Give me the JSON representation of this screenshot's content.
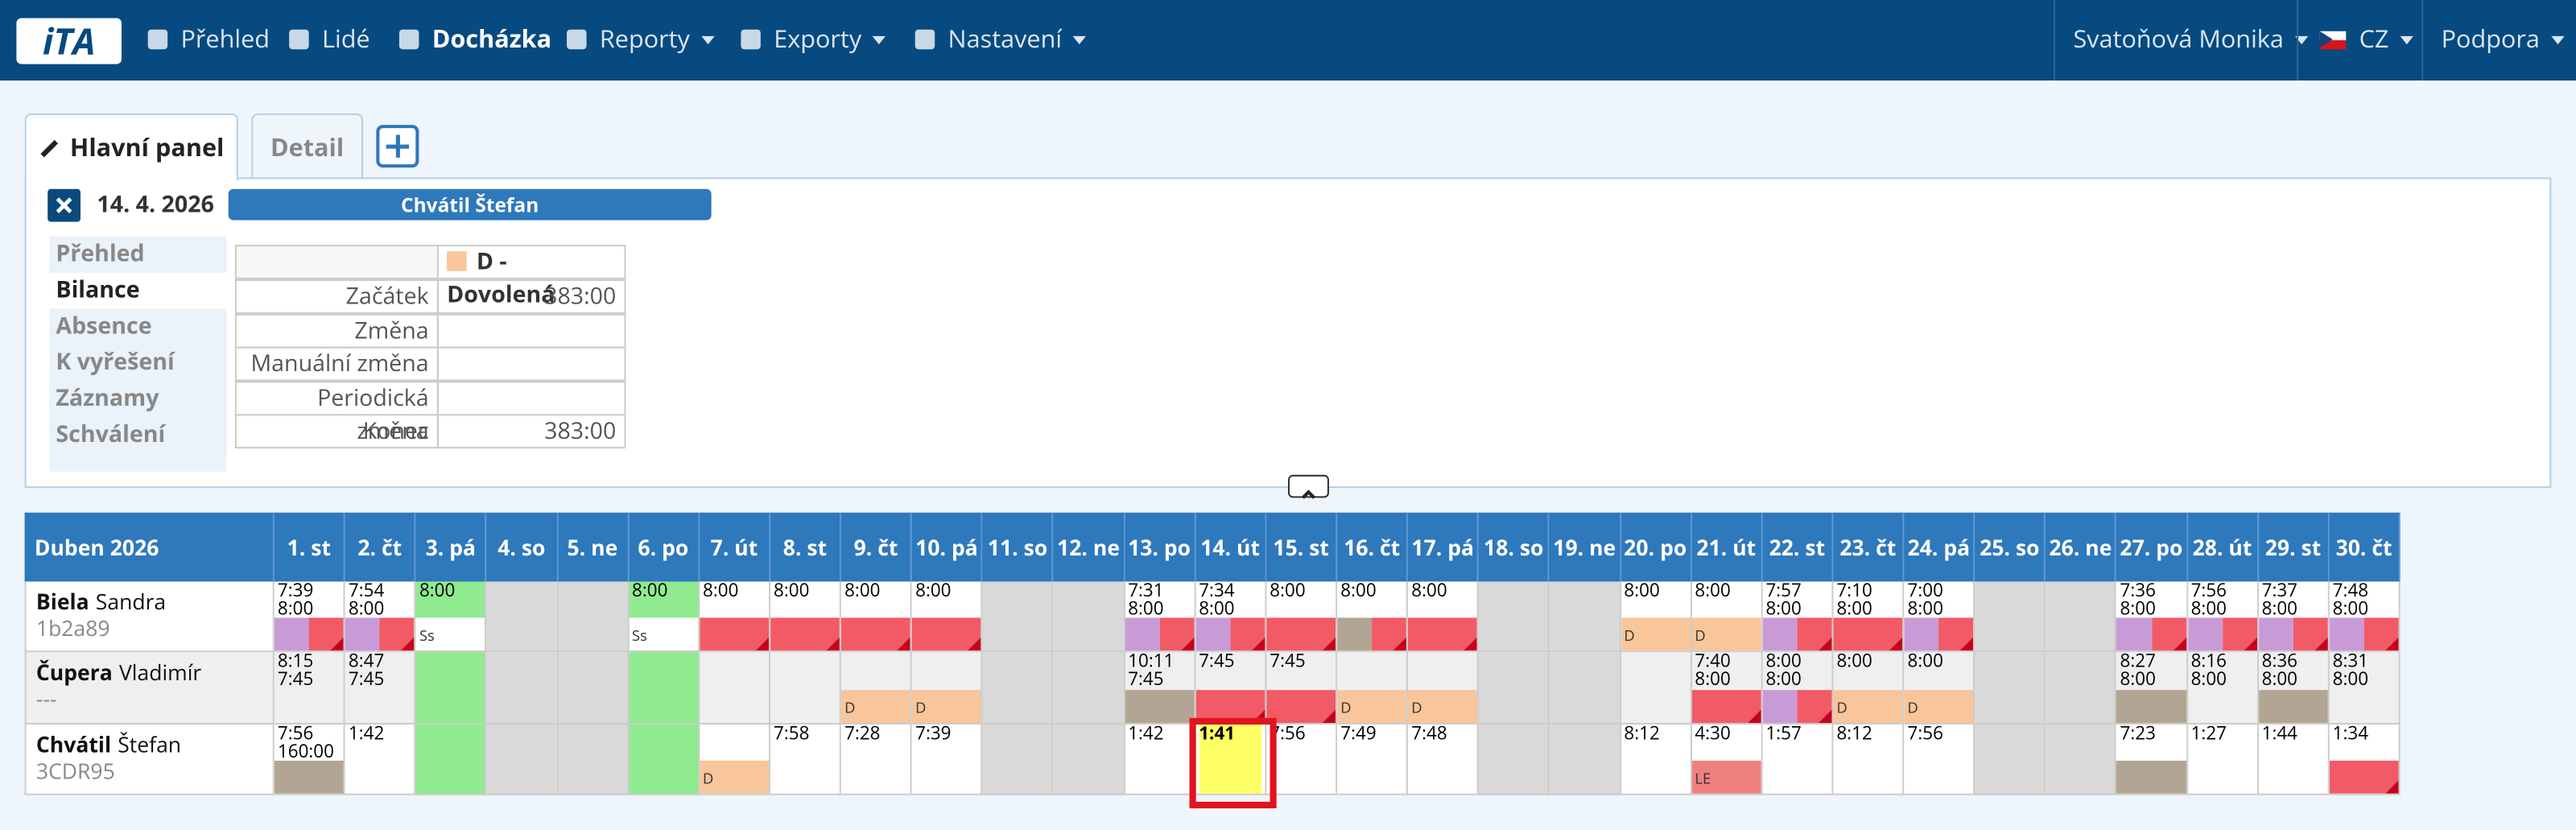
{
  "nav": {
    "logo": "iTA",
    "items": [
      "Přehled",
      "Lidé",
      "Docházka",
      "Reporty",
      "Exporty",
      "Nastavení"
    ],
    "active": 2,
    "dropdowns": [
      3,
      4,
      5
    ],
    "user": "Svatoňová Monika",
    "lang": "CZ",
    "support": "Podpora"
  },
  "tabs": [
    "Hlavní panel",
    "Detail"
  ],
  "panel": {
    "date": "14. 4. 2026",
    "employee": "Chvátil Štefan",
    "menu": [
      "Přehled",
      "Bilance",
      "Absence",
      "K vyřešení",
      "Záznamy",
      "Schválení"
    ],
    "menu_active": 1,
    "balance": {
      "header": "D - Dovolená",
      "rows": [
        {
          "label": "Začátek",
          "value": "383:00"
        },
        {
          "label": "Změna"
        },
        {
          "label": "Manuální změna"
        },
        {
          "label": "Periodická změna"
        },
        {
          "label": "Konec",
          "value": "383:00"
        }
      ]
    }
  },
  "calendar": {
    "month": "Duben 2026",
    "colors": {
      "purple": "#c99bd6",
      "red": "#f25a66",
      "brown": "#b3a593",
      "orange": "#f9c59a",
      "salmon": "#f08080",
      "white": "#ffffff"
    },
    "days": [
      "1. st",
      "2. čt",
      "3. pá",
      "4. so",
      "5. ne",
      "6. po",
      "7. út",
      "8. st",
      "9. čt",
      "10. pá",
      "11. so",
      "12. ne",
      "13. po",
      "14. út",
      "15. st",
      "16. čt",
      "17. pá",
      "18. so",
      "19. ne",
      "20. po",
      "21. út",
      "22. st",
      "23. čt",
      "24. pá",
      "25. so",
      "26. ne",
      "27. po",
      "28. út",
      "29. st",
      "30. čt"
    ],
    "rows": [
      {
        "surname": "Biela",
        "firstname": "Sandra",
        "code": "1b2a89",
        "cells": [
          {
            "lines": [
              "7:39",
              "8:00"
            ],
            "bar": [
              "purple",
              "red"
            ]
          },
          {
            "lines": [
              "7:54",
              "8:00"
            ],
            "bar": [
              "purple",
              "red"
            ]
          },
          {
            "kind": "holiday",
            "lines": [
              "8:00"
            ],
            "bar": [
              "white"
            ],
            "tag": "Ss"
          },
          {
            "kind": "weekend"
          },
          {
            "kind": "weekend"
          },
          {
            "kind": "holiday",
            "lines": [
              "8:00"
            ],
            "bar": [
              "white"
            ],
            "tag": "Ss"
          },
          {
            "lines": [
              "8:00"
            ],
            "bar": [
              "red"
            ]
          },
          {
            "lines": [
              "8:00"
            ],
            "bar": [
              "red"
            ]
          },
          {
            "lines": [
              "8:00"
            ],
            "bar": [
              "red"
            ]
          },
          {
            "lines": [
              "8:00"
            ],
            "bar": [
              "red"
            ]
          },
          {
            "kind": "weekend"
          },
          {
            "kind": "weekend"
          },
          {
            "lines": [
              "7:31",
              "8:00"
            ],
            "bar": [
              "purple",
              "red"
            ]
          },
          {
            "lines": [
              "7:34",
              "8:00"
            ],
            "bar": [
              "purple",
              "red"
            ]
          },
          {
            "lines": [
              "8:00"
            ],
            "bar": [
              "red"
            ]
          },
          {
            "lines": [
              "8:00"
            ],
            "bar": [
              "brown",
              "red"
            ]
          },
          {
            "lines": [
              "8:00"
            ],
            "bar": [
              "red"
            ]
          },
          {
            "kind": "weekend"
          },
          {
            "kind": "weekend"
          },
          {
            "lines": [
              "8:00"
            ],
            "bar": [
              "orange"
            ],
            "tag": "D"
          },
          {
            "lines": [
              "8:00"
            ],
            "bar": [
              "orange"
            ],
            "tag": "D"
          },
          {
            "lines": [
              "7:57",
              "8:00"
            ],
            "bar": [
              "purple",
              "red"
            ]
          },
          {
            "lines": [
              "7:10",
              "8:00"
            ],
            "bar": [
              "red"
            ]
          },
          {
            "lines": [
              "7:00",
              "8:00"
            ],
            "bar": [
              "purple",
              "red"
            ]
          },
          {
            "kind": "weekend"
          },
          {
            "kind": "weekend"
          },
          {
            "lines": [
              "7:36",
              "8:00"
            ],
            "bar": [
              "purple",
              "red"
            ]
          },
          {
            "lines": [
              "7:56",
              "8:00"
            ],
            "bar": [
              "purple",
              "red"
            ]
          },
          {
            "lines": [
              "7:37",
              "8:00"
            ],
            "bar": [
              "purple",
              "red"
            ]
          },
          {
            "lines": [
              "7:48",
              "8:00"
            ],
            "bar": [
              "purple",
              "red"
            ]
          }
        ]
      },
      {
        "surname": "Čupera",
        "firstname": "Vladimír",
        "code": "---",
        "shade": true,
        "cells": [
          {
            "lines": [
              "8:15",
              "7:45"
            ]
          },
          {
            "lines": [
              "8:47",
              "7:45"
            ]
          },
          {
            "kind": "holiday"
          },
          {
            "kind": "weekend"
          },
          {
            "kind": "weekend"
          },
          {
            "kind": "holiday"
          },
          {},
          {},
          {
            "bar": [
              "orange"
            ],
            "tag": "D"
          },
          {
            "bar": [
              "orange"
            ],
            "tag": "D"
          },
          {
            "kind": "weekend"
          },
          {
            "kind": "weekend"
          },
          {
            "lines": [
              "10:11",
              "7:45"
            ],
            "bar": [
              "brown"
            ]
          },
          {
            "lines": [
              "7:45"
            ],
            "bar": [
              "red"
            ]
          },
          {
            "lines": [
              "7:45"
            ],
            "bar": [
              "red"
            ]
          },
          {
            "bar": [
              "orange"
            ],
            "tag": "D"
          },
          {
            "bar": [
              "orange"
            ],
            "tag": "D"
          },
          {
            "kind": "weekend"
          },
          {
            "kind": "weekend"
          },
          {},
          {
            "lines": [
              "7:40",
              "8:00"
            ],
            "bar": [
              "red"
            ]
          },
          {
            "lines": [
              "8:00",
              "8:00"
            ],
            "bar": [
              "purple",
              "red"
            ]
          },
          {
            "lines": [
              "8:00"
            ],
            "bar": [
              "orange"
            ],
            "tag": "D"
          },
          {
            "lines": [
              "8:00"
            ],
            "bar": [
              "orange"
            ],
            "tag": "D"
          },
          {
            "kind": "weekend"
          },
          {
            "kind": "weekend"
          },
          {
            "lines": [
              "8:27",
              "8:00"
            ],
            "bar": [
              "brown"
            ]
          },
          {
            "lines": [
              "8:16",
              "8:00"
            ]
          },
          {
            "lines": [
              "8:36",
              "8:00"
            ],
            "bar": [
              "brown"
            ]
          },
          {
            "lines": [
              "8:31",
              "8:00"
            ]
          }
        ]
      },
      {
        "surname": "Chvátil",
        "firstname": "Štefan",
        "code": "3CDR95",
        "cells": [
          {
            "lines": [
              "7:56",
              "160:00"
            ],
            "bar": [
              "brown"
            ]
          },
          {
            "lines": [
              "1:42"
            ]
          },
          {
            "kind": "holiday"
          },
          {
            "kind": "weekend"
          },
          {
            "kind": "weekend"
          },
          {
            "kind": "holiday"
          },
          {
            "bar": [
              "orange"
            ],
            "tag": "D"
          },
          {
            "lines": [
              "7:58"
            ]
          },
          {
            "lines": [
              "7:28"
            ]
          },
          {
            "lines": [
              "7:39"
            ]
          },
          {
            "kind": "weekend"
          },
          {
            "kind": "weekend"
          },
          {
            "lines": [
              "1:42"
            ]
          },
          {
            "lines": [
              "1:41"
            ],
            "kind": "selected"
          },
          {
            "lines": [
              "7:56"
            ]
          },
          {
            "lines": [
              "7:49"
            ]
          },
          {
            "lines": [
              "7:48"
            ]
          },
          {
            "kind": "weekend"
          },
          {
            "kind": "weekend"
          },
          {
            "lines": [
              "8:12"
            ]
          },
          {
            "lines": [
              "4:30"
            ],
            "bar": [
              "salmon"
            ],
            "tag": "LE"
          },
          {
            "lines": [
              "1:57"
            ]
          },
          {
            "lines": [
              "8:12"
            ]
          },
          {
            "lines": [
              "7:56"
            ]
          },
          {
            "kind": "weekend"
          },
          {
            "kind": "weekend"
          },
          {
            "lines": [
              "7:23"
            ],
            "bar": [
              "brown"
            ]
          },
          {
            "lines": [
              "1:27"
            ]
          },
          {
            "lines": [
              "1:44"
            ]
          },
          {
            "lines": [
              "1:34"
            ],
            "bar": [
              "red"
            ]
          }
        ]
      }
    ]
  }
}
